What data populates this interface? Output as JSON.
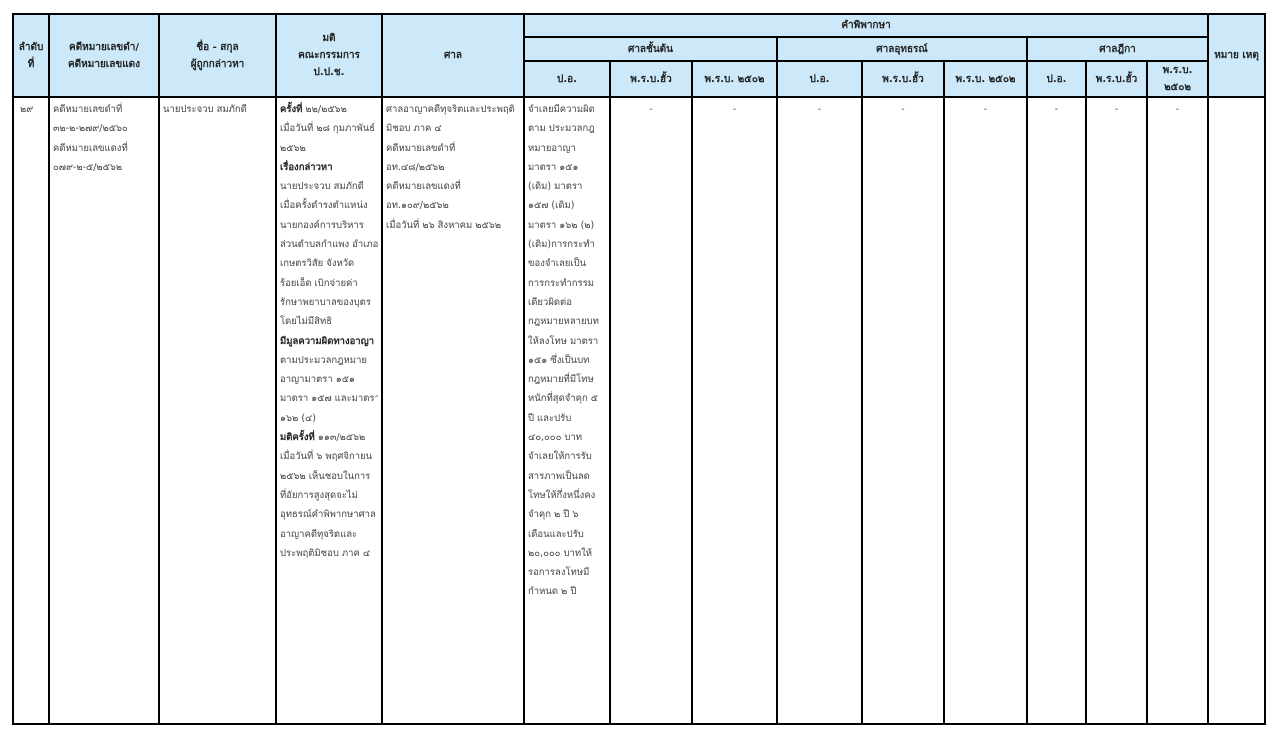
{
  "header": {
    "no": "ลำดับ ที่",
    "case_no": [
      "คดีหมายเลขดำ/",
      "คดีหมายเลขแดง"
    ],
    "name": [
      "ชื่อ - สกุล",
      "ผู้ถูกกล่าวหา"
    ],
    "resolution": [
      "มติ",
      "คณะกรรมการ",
      "ป.ป.ช."
    ],
    "court": "ศาล",
    "judgment": "คำพิพากษา",
    "court_levels": [
      "ศาลชั้นต้น",
      "ศาลอุทธรณ์",
      "ศาลฎีกา"
    ],
    "sub_cols": [
      "ป.อ.",
      "พ.ร.บ.ฮั้ว",
      "พ.ร.บ. ๒๕๐๒"
    ],
    "last_sub_col": "พ.ร.บ. ๒๕๐๒",
    "remark": "หมาย เหตุ"
  },
  "row": {
    "no": "๒๙",
    "case_no": [
      {
        "t": "คดีหมายเลขดำที่"
      },
      {
        "t": "๓๒-๒-๒๗๙/๒๕๖๐"
      },
      {
        "t": "คดีหมายเลขแดงที่"
      },
      {
        "t": "๐๗๙-๒-๕/๒๕๖๒"
      }
    ],
    "name": "นายประจวบ  สมภักดี",
    "resolution": [
      {
        "b": "ครั้งที่",
        "t": " ๒๒/๒๕๖๒"
      },
      {
        "t": "เมื่อวันที่ ๒๘ กุมภาพันธ์"
      },
      {
        "t": "๒๕๖๒"
      },
      {
        "b": "เรื่องกล่าวหา"
      },
      {
        "t": "นายประจวบ สมภักดี"
      },
      {
        "t": "เมื่อครั้งดำรงตำแหน่ง"
      },
      {
        "t": "นายกองค์การบริหาร"
      },
      {
        "t": "ส่วนตำบลกำแพง อำเภอ"
      },
      {
        "t": "เกษตรวิสัย จังหวัด"
      },
      {
        "t": "ร้อยเอ็ด เบิกจ่ายค่า"
      },
      {
        "t": "รักษาพยาบาลของบุตร"
      },
      {
        "t": "โดยไม่มีสิทธิ"
      },
      {
        "b": "มีมูลความผิดทางอาญา"
      },
      {
        "t": "ตามประมวลกฎหมาย"
      },
      {
        "t": "อาญามาตรา ๑๕๑"
      },
      {
        "t": "มาตรา ๑๕๗ และมาตรา"
      },
      {
        "t": " ๑๖๒ (๔)"
      },
      {
        "b": "มติครั้งที่",
        "t": " ๑๑๓/๒๕๖๒"
      },
      {
        "t": "เมื่อวันที่ ๖ พฤศจิกายน"
      },
      {
        "t": " ๒๕๖๒ เห็นชอบในการ"
      },
      {
        "t": "ที่อัยการสูงสุดจะไม่"
      },
      {
        "t": "อุทธรณ์คำพิพากษาศาล"
      },
      {
        "t": "อาญาคดีทุจริตและ"
      },
      {
        "t": "ประพฤติมิชอบ ภาค ๔"
      }
    ],
    "court": [
      {
        "t": "ศาลอาญาคดีทุจริตและประพฤติ"
      },
      {
        "t": "มิชอบ ภาค ๔"
      },
      {
        "t": "คดีหมายเลขดำที่"
      },
      {
        "t": "อท.๔๘/๒๕๖๒"
      },
      {
        "t": "คดีหมายเลขแดงที่"
      },
      {
        "t": "อท.๑๐๙/๒๕๖๒"
      },
      {
        "t": "เมื่อวันที่ ๒๖ สิงหาคม ๒๕๖๒"
      }
    ],
    "first_instance_criminal": [
      {
        "t": "จำเลยมีความผิด"
      },
      {
        "t": "ตาม ประมวลกฎ"
      },
      {
        "t": "หมายอาญา"
      },
      {
        "t": "มาตรา ๑๕๑"
      },
      {
        "t": "(เดิม) มาตรา"
      },
      {
        "t": "๑๕๗ (เดิม)"
      },
      {
        "t": "มาตรา ๑๖๒ (๒)"
      },
      {
        "t": "(เดิม)การกระทำ"
      },
      {
        "t": "ของจำเลยเป็น"
      },
      {
        "t": "การกระทำกรรม"
      },
      {
        "t": "เดียวผิดต่อ"
      },
      {
        "t": "กฎหมายหลายบท"
      },
      {
        "t": " ให้ลงโทษ มาตรา"
      },
      {
        "t": " ๑๕๑ ซึ่งเป็นบท"
      },
      {
        "t": "กฎหมายที่มีโทษ"
      },
      {
        "t": "หนักที่สุดจำคุก ๕"
      },
      {
        "t": " ปี และปรับ"
      },
      {
        "t": "๔๐,๐๐๐ บาท"
      },
      {
        "t": "จำเลยให้การรับ"
      },
      {
        "t": "สารภาพเป็นลด"
      },
      {
        "t": "โทษให้กึ่งหนึ่งคง"
      },
      {
        "t": "จำคุก ๒ ปี ๖"
      },
      {
        "t": "เดือนและปรับ"
      },
      {
        "t": "๒๐,๐๐๐ บาทให้"
      },
      {
        "t": "รอการลงโทษมี"
      },
      {
        "t": "กำหนด ๒ ปี"
      }
    ],
    "dashes": [
      "-",
      "-",
      "-",
      "-",
      "-",
      "-",
      "-",
      "-"
    ],
    "remark": ""
  }
}
